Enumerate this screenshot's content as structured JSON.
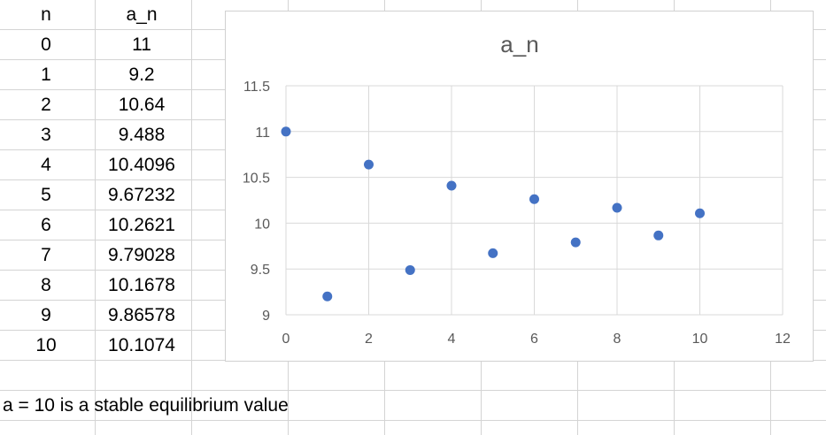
{
  "sheet": {
    "headers": {
      "n": "n",
      "a": "a_n"
    },
    "rows": [
      {
        "n": "0",
        "a": "11"
      },
      {
        "n": "1",
        "a": "9.2"
      },
      {
        "n": "2",
        "a": "10.64"
      },
      {
        "n": "3",
        "a": "9.488"
      },
      {
        "n": "4",
        "a": "10.4096"
      },
      {
        "n": "5",
        "a": "9.67232"
      },
      {
        "n": "6",
        "a": "10.2621"
      },
      {
        "n": "7",
        "a": "9.79028"
      },
      {
        "n": "8",
        "a": "10.1678"
      },
      {
        "n": "9",
        "a": "9.86578"
      },
      {
        "n": "10",
        "a": "10.1074"
      }
    ],
    "note": "a = 10 is a stable equilibrium value"
  },
  "chart_data": {
    "type": "scatter",
    "title": "a_n",
    "xlabel": "",
    "ylabel": "",
    "xlim": [
      0,
      12
    ],
    "ylim": [
      9,
      11.5
    ],
    "x_ticks": [
      0,
      2,
      4,
      6,
      8,
      10,
      12
    ],
    "y_ticks": [
      9,
      9.5,
      10,
      10.5,
      11,
      11.5
    ],
    "grid": true,
    "marker_color": "#4472c4",
    "series": [
      {
        "x": [
          0,
          1,
          2,
          3,
          4,
          5,
          6,
          7,
          8,
          9,
          10
        ],
        "y": [
          11,
          9.2,
          10.64,
          9.488,
          10.4096,
          9.67232,
          10.2621,
          9.79028,
          10.1678,
          9.86578,
          10.1074
        ]
      }
    ]
  }
}
